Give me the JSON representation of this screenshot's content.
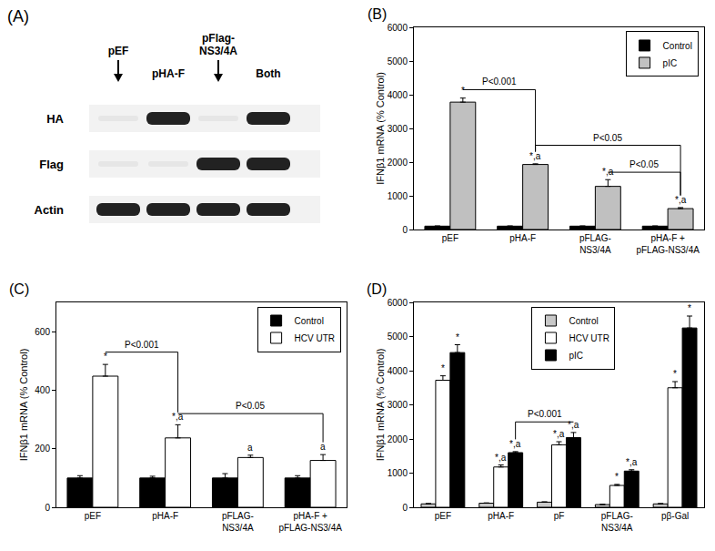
{
  "blot": {
    "panel": "(A)",
    "lanes": [
      {
        "label": "pEF",
        "arrow": true
      },
      {
        "label": "pHA-F",
        "arrow": false
      },
      {
        "label": "pFlag-\nNS3/4A",
        "arrow": true
      },
      {
        "label": "Both",
        "arrow": false
      }
    ],
    "rows": [
      {
        "label": "HA",
        "bands": [
          false,
          true,
          false,
          true
        ]
      },
      {
        "label": "Flag",
        "bands": [
          false,
          false,
          true,
          true
        ]
      },
      {
        "label": "Actin",
        "bands": [
          true,
          true,
          true,
          true
        ]
      }
    ]
  },
  "chart_data": [
    {
      "type": "bar",
      "panel": "(B)",
      "y_label": "IFNβ1 mRNA (% Control)",
      "categories": [
        "pEF",
        "pHA-F",
        "pFLAG-\nNS3/4A",
        "pHA-F +\npFLAG-NS3/4A"
      ],
      "series": [
        {
          "name": "Control",
          "color": "#000000",
          "values": [
            100,
            100,
            100,
            100
          ],
          "errors": [
            5,
            5,
            5,
            5
          ]
        },
        {
          "name": "pIC",
          "color": "#c0c0c0",
          "values": [
            3780,
            1930,
            1280,
            620
          ],
          "errors": [
            120,
            20,
            200,
            30
          ],
          "labels": [
            "*",
            "*,a",
            "*,a",
            "*,a"
          ]
        }
      ],
      "brackets": [
        {
          "text": "P<0.001",
          "from": 0,
          "to": 1,
          "series": "pIC",
          "y": 4150
        },
        {
          "text": "P<0.05",
          "from": 1,
          "to": 3,
          "series": "pIC",
          "y": 2500
        },
        {
          "text": "P<0.05",
          "from": 2,
          "to": 3,
          "series": "pIC",
          "y": 1700
        }
      ],
      "ylim": [
        0,
        6000
      ],
      "yticks": [
        0,
        1000,
        2000,
        3000,
        4000,
        5000,
        6000
      ],
      "legend": "upper right"
    },
    {
      "type": "bar",
      "panel": "(C)",
      "y_label": "IFNβ1 mRNA (% Control)",
      "categories": [
        "pEF",
        "pHA-F",
        "pFLAG-\nNS3/4A",
        "pHA-F +\npFLAG-NS3/4A"
      ],
      "series": [
        {
          "name": "Control",
          "color": "#000000",
          "values": [
            100,
            100,
            100,
            100
          ],
          "errors": [
            8,
            6,
            15,
            8
          ]
        },
        {
          "name": "HCV UTR",
          "color": "#ffffff",
          "values": [
            448,
            237,
            170,
            160
          ],
          "errors": [
            40,
            45,
            8,
            20
          ],
          "labels": [
            "*",
            "*,a",
            "a",
            "a"
          ]
        }
      ],
      "brackets": [
        {
          "text": "P<0.001",
          "from": 0,
          "to": 1,
          "series": "HCV UTR",
          "y": 530
        },
        {
          "text": "P<0.05",
          "from": 1,
          "to": 3,
          "series": "HCV UTR",
          "y": 320
        }
      ],
      "ylim": [
        0,
        700
      ],
      "yticks": [
        0,
        200,
        400,
        600
      ],
      "legend": "upper right"
    },
    {
      "type": "bar",
      "panel": "(D)",
      "y_label": "IFNβ1 mRNA (% Control)",
      "categories": [
        "pEF",
        "pHA-F",
        "pF",
        "pFLAG-\nNS3/4A",
        "pβ-Gal"
      ],
      "series": [
        {
          "name": "Control",
          "color": "#c8c8c8",
          "values": [
            100,
            120,
            150,
            80,
            100
          ],
          "errors": [
            10,
            10,
            10,
            10,
            10
          ]
        },
        {
          "name": "HCV UTR",
          "color": "#ffffff",
          "values": [
            3720,
            1180,
            1830,
            640,
            3500
          ],
          "errors": [
            130,
            60,
            90,
            30,
            180
          ],
          "labels": [
            "*",
            "*,a",
            "*,a",
            "*",
            "*"
          ]
        },
        {
          "name": "pIC",
          "color": "#000000",
          "values": [
            4530,
            1600,
            2040,
            1060,
            5250
          ],
          "errors": [
            230,
            30,
            150,
            40,
            350
          ],
          "labels": [
            "*",
            "*,a",
            "*,a",
            "*,a",
            "*"
          ]
        }
      ],
      "brackets": [
        {
          "text": "P<0.001",
          "from": 1,
          "to": 2,
          "series": "pIC",
          "y": 2500
        }
      ],
      "ylim": [
        0,
        6000
      ],
      "yticks": [
        0,
        1000,
        2000,
        3000,
        4000,
        5000,
        6000
      ],
      "legend": "upper center"
    }
  ]
}
